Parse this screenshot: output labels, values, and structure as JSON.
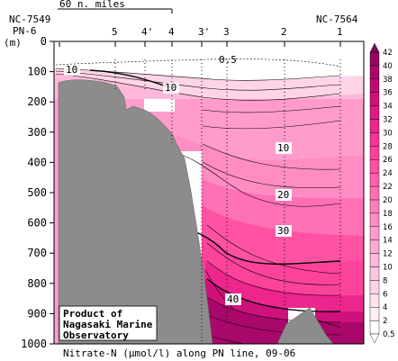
{
  "chart_data": {
    "type": "heatmap",
    "title": "Nitrate-N (μmol/l) along PN line, 09-06",
    "ylabel": "(m)",
    "ylim": [
      0,
      1000
    ],
    "yticks": [
      0,
      100,
      200,
      300,
      400,
      500,
      600,
      700,
      800,
      900,
      1000
    ],
    "scale_bar": "60 n. miles",
    "left_ends": [
      "NC-7549",
      "PN-6"
    ],
    "right_end": "NC-7564",
    "stations": [
      "5",
      "4'",
      "4",
      "3'",
      "3",
      "2",
      "1"
    ],
    "colorbar_values": [
      0.5,
      2,
      4,
      6,
      8,
      10,
      12,
      14,
      16,
      18,
      20,
      22,
      24,
      26,
      28,
      30,
      32,
      34,
      36,
      38,
      40,
      42
    ],
    "colorbar_colors": [
      "#ffffff",
      "#fff0f6",
      "#ffe2ef",
      "#ffd4e8",
      "#ffc6e1",
      "#ffb8da",
      "#ffaad3",
      "#ff9ccc",
      "#ff8dc4",
      "#ff7fbc",
      "#ff70b4",
      "#ff61ac",
      "#ff52a3",
      "#fc439b",
      "#f53493",
      "#ec268c",
      "#df1a84",
      "#cf117c",
      "#bd0c74",
      "#a9086b",
      "#940662",
      "#7f0558"
    ],
    "contour_labels": [
      "0.5",
      "10",
      "10",
      "10",
      "20",
      "30",
      "40"
    ],
    "credit": [
      "Product of",
      "Nagasaki Marine",
      "Observatory"
    ],
    "grid": false
  }
}
